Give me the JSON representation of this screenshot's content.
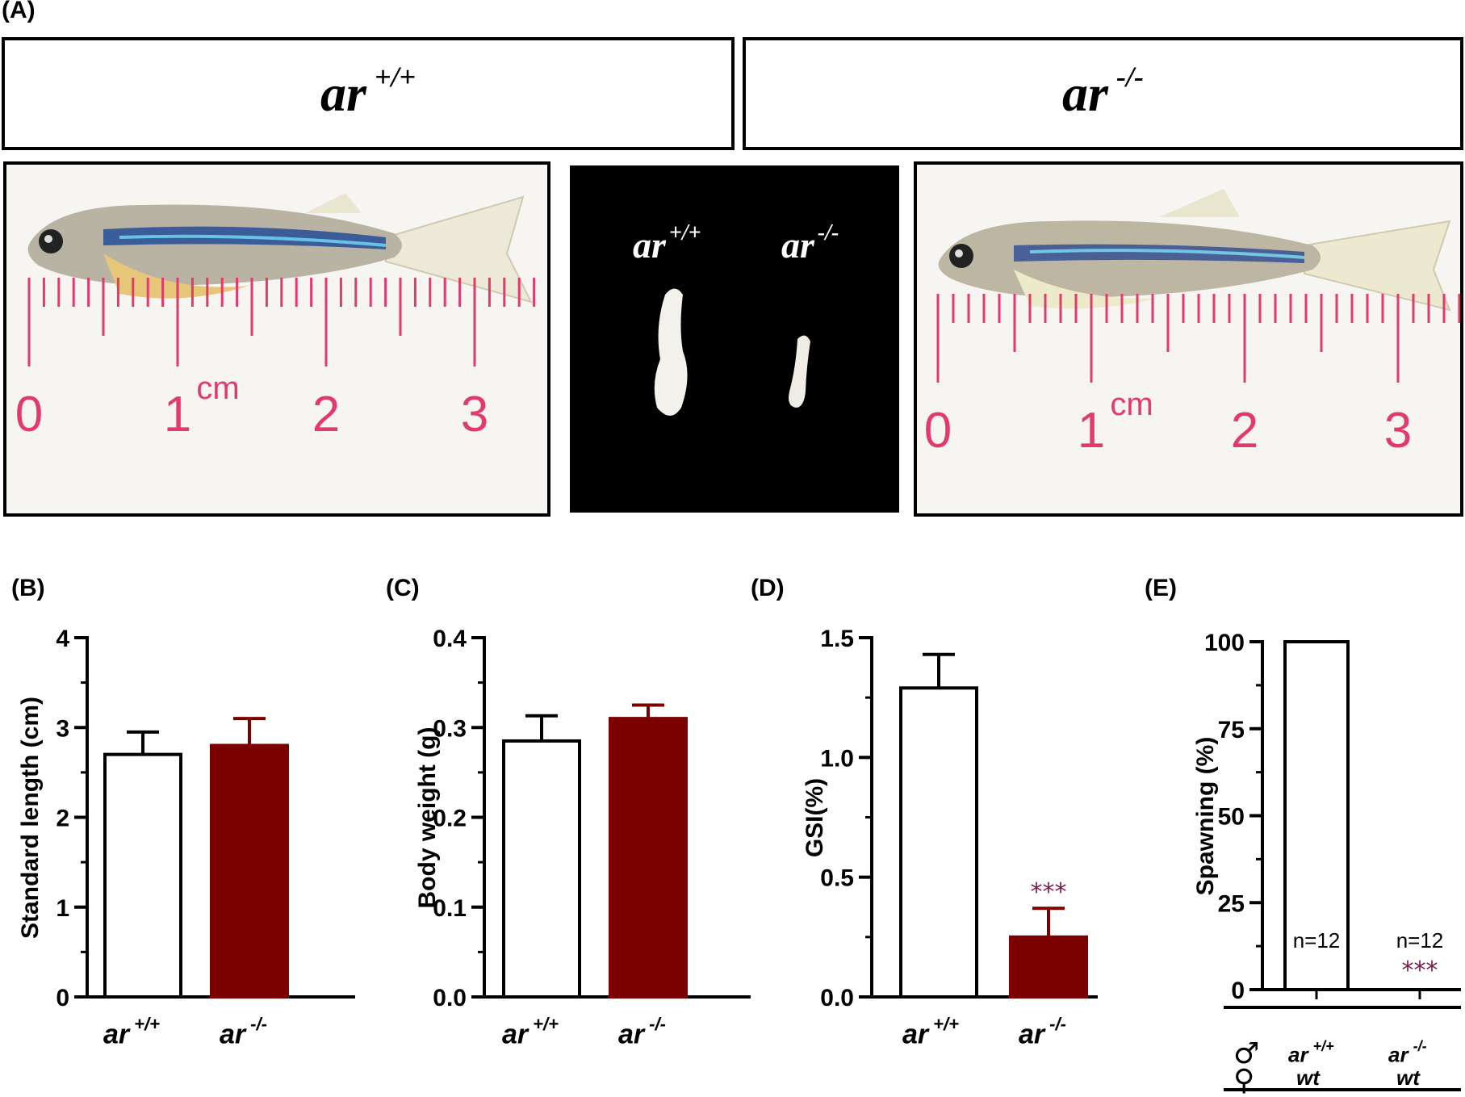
{
  "panel_a": {
    "letter": "(A)",
    "wild_box": {
      "genotype": "ar",
      "sup": "+/+"
    },
    "mutant_box": {
      "genotype": "ar",
      "sup": "-/-"
    },
    "gonad": {
      "wild_label": {
        "genotype": "ar",
        "sup": "+/+"
      },
      "mutant_label": {
        "genotype": "ar",
        "sup": "-/-"
      }
    },
    "ruler": {
      "unit": "cm",
      "numbers": [
        "0",
        "1",
        "2",
        "3"
      ]
    }
  },
  "colors": {
    "mutant_bar": "#7b0000",
    "wild_bar": "#ffffff",
    "significance": "#7a1a4a",
    "ruler": "#e23a6a"
  },
  "chart_data": [
    {
      "panel": "(B)",
      "type": "bar",
      "ylabel": "Standard length (cm)",
      "categories": [
        {
          "genotype": "ar",
          "sup": "+/+"
        },
        {
          "genotype": "ar",
          "sup": "-/-"
        }
      ],
      "values": [
        2.7,
        2.8
      ],
      "errors": [
        0.25,
        0.3
      ],
      "ylim": [
        0,
        4
      ],
      "yticks": [
        "0",
        "1",
        "2",
        "3",
        "4"
      ],
      "ytick_values": [
        0,
        1,
        2,
        3,
        4
      ],
      "minor_step": 0.5
    },
    {
      "panel": "(C)",
      "type": "bar",
      "ylabel": "Body weight (g)",
      "categories": [
        {
          "genotype": "ar",
          "sup": "+/+"
        },
        {
          "genotype": "ar",
          "sup": "-/-"
        }
      ],
      "values": [
        0.285,
        0.31
      ],
      "errors": [
        0.028,
        0.015
      ],
      "ylim": [
        0,
        0.4
      ],
      "yticks": [
        "0.0",
        "0.1",
        "0.2",
        "0.3",
        "0.4"
      ],
      "ytick_values": [
        0,
        0.1,
        0.2,
        0.3,
        0.4
      ],
      "minor_step": 0.05
    },
    {
      "panel": "(D)",
      "type": "bar",
      "ylabel": "GSI(%)",
      "categories": [
        {
          "genotype": "ar",
          "sup": "+/+"
        },
        {
          "genotype": "ar",
          "sup": "-/-"
        }
      ],
      "values": [
        1.29,
        0.25
      ],
      "errors": [
        0.14,
        0.12
      ],
      "ylim": [
        0,
        1.5
      ],
      "yticks": [
        "0.0",
        "0.5",
        "1.0",
        "1.5"
      ],
      "ytick_values": [
        0,
        0.5,
        1.0,
        1.5
      ],
      "minor_step": 0.25,
      "significance": "***"
    },
    {
      "panel": "(E)",
      "type": "bar",
      "ylabel": "Spawning (%)",
      "categories": [
        {
          "male": {
            "genotype": "ar",
            "sup": "+/+"
          },
          "female": "wt"
        },
        {
          "male": {
            "genotype": "ar",
            "sup": "-/-"
          },
          "female": "wt"
        }
      ],
      "values": [
        100,
        0
      ],
      "ylim": [
        0,
        100
      ],
      "yticks": [
        "0",
        "25",
        "50",
        "75",
        "100"
      ],
      "ytick_values": [
        0,
        25,
        50,
        75,
        100
      ],
      "minor_step": 12.5,
      "n_labels": [
        "n=12",
        "n=12"
      ],
      "significance": "***",
      "male_symbol": "♂",
      "female_symbol": "♀"
    }
  ]
}
